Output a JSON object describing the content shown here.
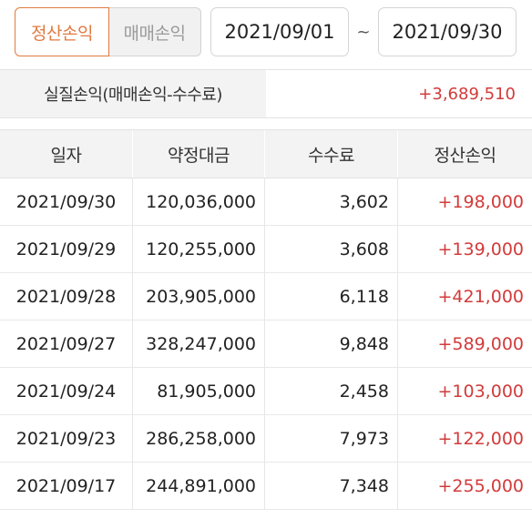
{
  "tabs": {
    "active": "정산손익",
    "inactive": "매매손익"
  },
  "date_range": {
    "from": "2021/09/01",
    "separator": "~",
    "to": "2021/09/30"
  },
  "summary": {
    "label": "실질손익(매매손익-수수료)",
    "value": "+3,689,510"
  },
  "table": {
    "headers": [
      "일자",
      "약정대금",
      "수수료",
      "정산손익"
    ],
    "rows": [
      [
        "2021/09/30",
        "120,036,000",
        "3,602",
        "+198,000"
      ],
      [
        "2021/09/29",
        "120,255,000",
        "3,608",
        "+139,000"
      ],
      [
        "2021/09/28",
        "203,905,000",
        "6,118",
        "+421,000"
      ],
      [
        "2021/09/27",
        "328,247,000",
        "9,848",
        "+589,000"
      ],
      [
        "2021/09/24",
        "81,905,000",
        "2,458",
        "+103,000"
      ],
      [
        "2021/09/23",
        "286,258,000",
        "7,973",
        "+122,000"
      ],
      [
        "2021/09/17",
        "244,891,000",
        "7,348",
        "+255,000"
      ]
    ]
  },
  "colors": {
    "accent": "#e07a3f",
    "profit": "#d23b3b"
  }
}
